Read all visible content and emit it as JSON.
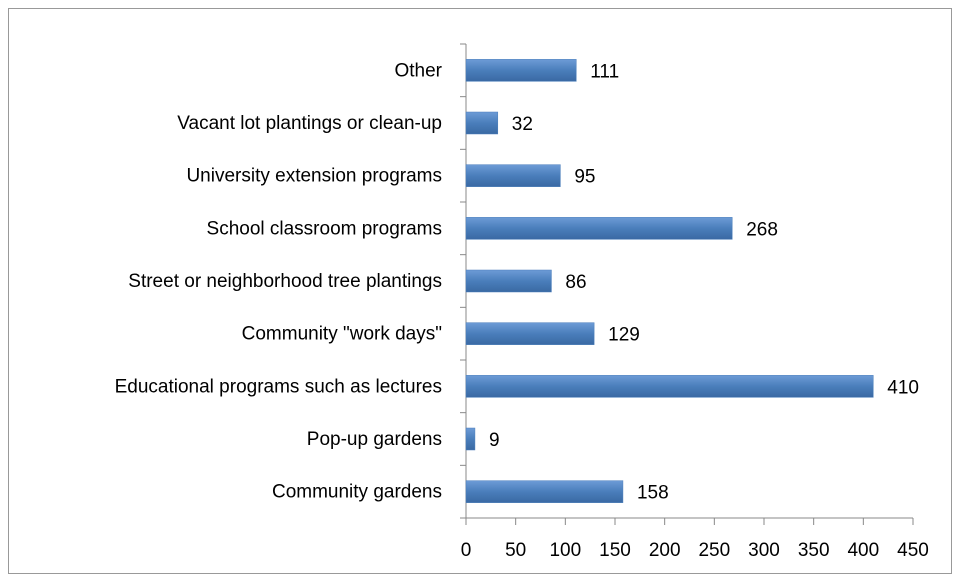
{
  "chart_data": {
    "type": "bar",
    "orientation": "horizontal",
    "categories": [
      "Other",
      "Vacant lot plantings or clean-up",
      "University extension programs",
      "School classroom programs",
      "Street or neighborhood tree plantings",
      "Community \"work days\"",
      "Educational programs such as lectures",
      "Pop-up gardens",
      "Community gardens"
    ],
    "values": [
      111,
      32,
      95,
      268,
      86,
      129,
      410,
      9,
      158
    ],
    "color": "#4a7ebb",
    "xlim": [
      0,
      450
    ],
    "xticks": [
      0,
      50,
      100,
      150,
      200,
      250,
      300,
      350,
      400,
      450
    ],
    "grid": false
  }
}
